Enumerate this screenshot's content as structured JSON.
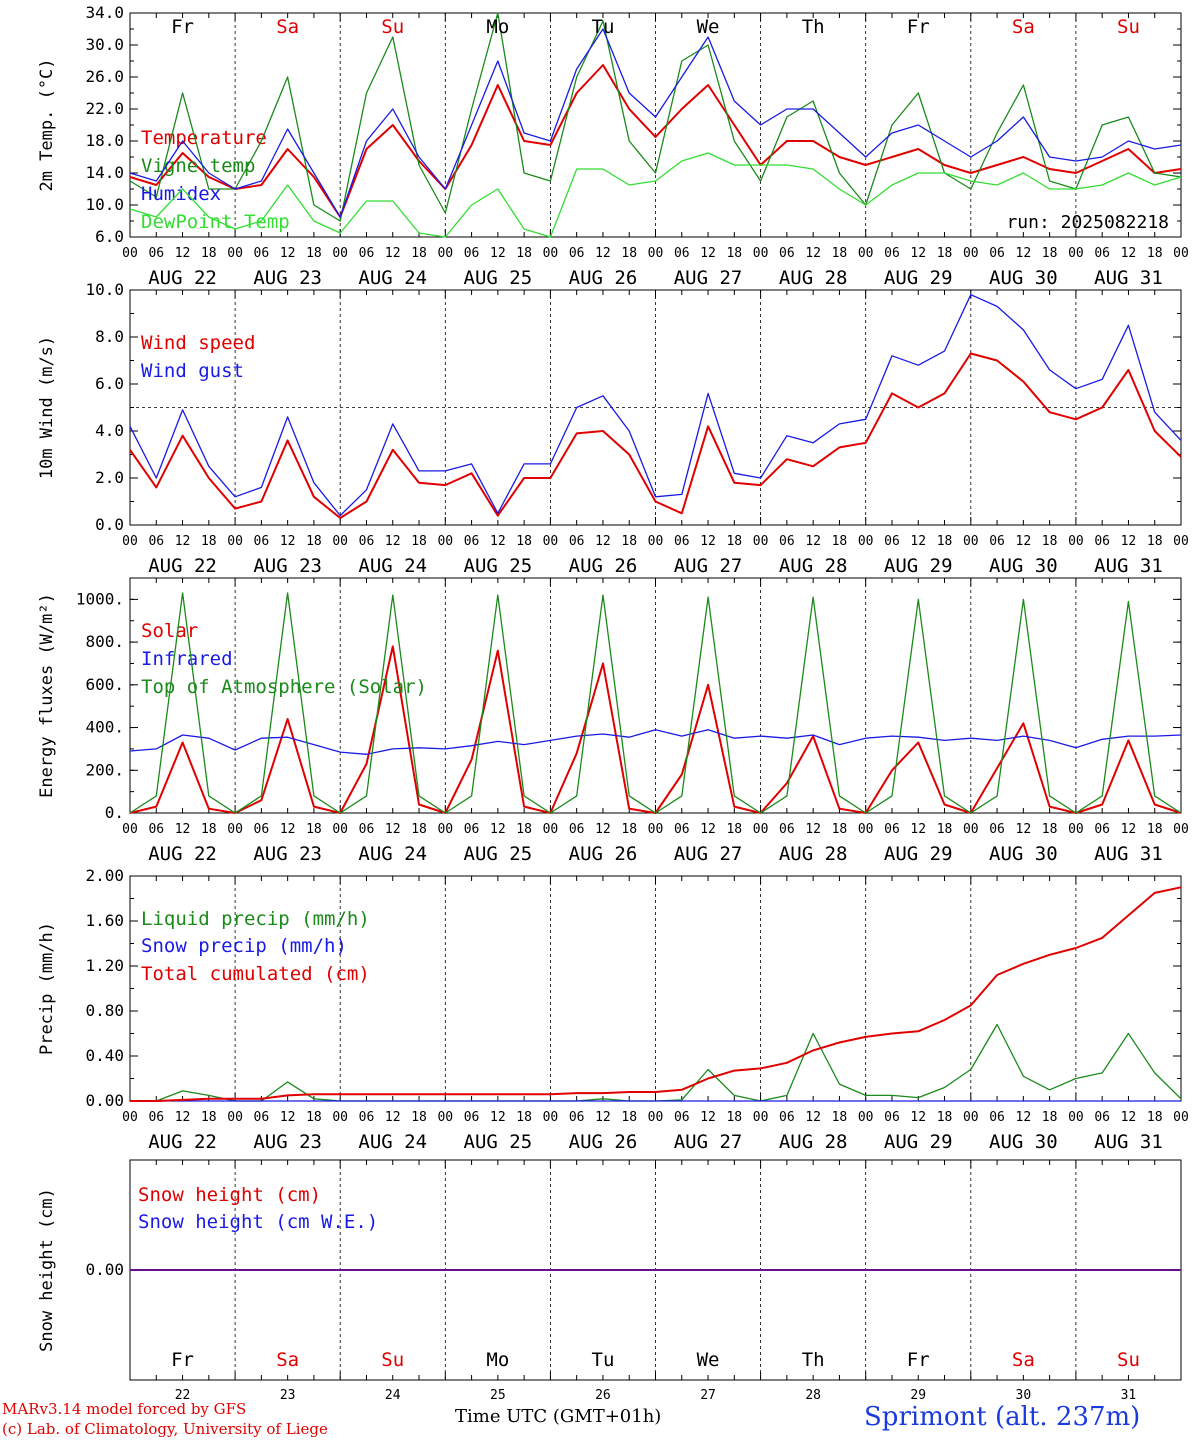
{
  "meta": {
    "run_label": "run: 2025082218",
    "x_axis_title": "Time UTC (GMT+01h)",
    "credit_line1": "MARv3.14 model forced by GFS",
    "credit_line2": "(c) Lab. of Climatology, University of Liege",
    "station": "Sprimont (alt. 237m)"
  },
  "days": {
    "abbrev": [
      "Fr",
      "Sa",
      "Su",
      "Mo",
      "Tu",
      "We",
      "Th",
      "Fr",
      "Sa",
      "Su"
    ],
    "weekend": [
      false,
      true,
      true,
      false,
      false,
      false,
      false,
      false,
      true,
      true
    ],
    "dates": [
      "AUG 22",
      "AUG 23",
      "AUG 24",
      "AUG 25",
      "AUG 26",
      "AUG 27",
      "AUG 28",
      "AUG 29",
      "AUG 30",
      "AUG 31"
    ],
    "numbers": [
      "22",
      "23",
      "24",
      "25",
      "26",
      "27",
      "28",
      "29",
      "30",
      "31"
    ],
    "hour_ticks": [
      "00",
      "06",
      "12",
      "18"
    ],
    "final_tick": "00"
  },
  "colors": {
    "red": "#e00000",
    "blue": "#1a1ae6",
    "green": "#1a8a1a",
    "lightgreen": "#33dd33"
  },
  "chart_data": [
    {
      "type": "line",
      "ylabel": "2m Temp. (°C)",
      "ylim": [
        6,
        34
      ],
      "yticks": [
        "34.0",
        "30.0",
        "26.0",
        "22.0",
        "18.0",
        "14.0",
        "10.0",
        "6.0"
      ],
      "x_hours_from_aug22_00": [
        0,
        6,
        12,
        18,
        24,
        30,
        36,
        42,
        48,
        54,
        60,
        66,
        72,
        78,
        84,
        90,
        96,
        102,
        108,
        114,
        120,
        126,
        132,
        138,
        144,
        150,
        156,
        162,
        168,
        174,
        180,
        186,
        192,
        198,
        204,
        210,
        216,
        222,
        228,
        234,
        240
      ],
      "series": [
        {
          "name": "Temperature",
          "color": "red",
          "values": [
            13.5,
            12.5,
            16.5,
            13.5,
            12,
            12.5,
            17,
            13.5,
            8.5,
            17,
            20,
            15.5,
            12,
            17.5,
            25,
            18,
            17.5,
            24,
            27.5,
            22,
            18.5,
            22,
            25,
            20,
            15,
            18,
            18,
            16,
            15,
            16,
            17,
            15,
            14,
            15,
            16,
            14.5,
            14,
            15.5,
            17,
            14,
            14.5
          ]
        },
        {
          "name": "Vigne temp",
          "color": "green",
          "values": [
            13,
            11,
            24,
            12,
            12,
            18,
            26,
            10,
            8,
            24,
            31,
            15,
            9,
            22,
            34,
            14,
            13,
            26,
            33,
            18,
            14,
            28,
            30,
            18,
            13,
            21,
            23,
            14,
            10,
            20,
            24,
            14,
            12,
            19,
            25,
            13,
            12,
            20,
            21,
            14,
            13.5
          ]
        },
        {
          "name": "Humidex",
          "color": "blue",
          "values": [
            14,
            13,
            18,
            14,
            12,
            13,
            19.5,
            14,
            8.5,
            18,
            22,
            16,
            12,
            20,
            28,
            19,
            18,
            27,
            32,
            24,
            21,
            26,
            31,
            23,
            20,
            22,
            22,
            19,
            16,
            19,
            20,
            18,
            16,
            18,
            21,
            16,
            15.5,
            16,
            18,
            17,
            17.5
          ]
        },
        {
          "name": "DewPoint Temp",
          "color": "lightgreen",
          "values": [
            9.5,
            8.5,
            12,
            8.5,
            7,
            8,
            12.5,
            8,
            6.5,
            10.5,
            10.5,
            6.5,
            6,
            10,
            12,
            7,
            6,
            14.5,
            14.5,
            12.5,
            13,
            15.5,
            16.5,
            15,
            15,
            15,
            14.5,
            12,
            10,
            12.5,
            14,
            14,
            13,
            12.5,
            14,
            12,
            12,
            12.5,
            14,
            12.5,
            13.5
          ]
        }
      ]
    },
    {
      "type": "line",
      "ylabel": "10m Wind (m/s)",
      "ylim": [
        0,
        10
      ],
      "yticks": [
        "10.0",
        "8.0",
        "6.0",
        "4.0",
        "2.0",
        "0.0"
      ],
      "reference_line": 5,
      "x_hours_from_aug22_00": [
        0,
        6,
        12,
        18,
        24,
        30,
        36,
        42,
        48,
        54,
        60,
        66,
        72,
        78,
        84,
        90,
        96,
        102,
        108,
        114,
        120,
        126,
        132,
        138,
        144,
        150,
        156,
        162,
        168,
        174,
        180,
        186,
        192,
        198,
        204,
        210,
        216,
        222,
        228,
        234,
        240
      ],
      "series": [
        {
          "name": "Wind speed",
          "color": "red",
          "values": [
            3.2,
            1.6,
            3.8,
            2.0,
            0.7,
            1.0,
            3.6,
            1.2,
            0.3,
            1.0,
            3.2,
            1.8,
            1.7,
            2.2,
            0.4,
            2.0,
            2.0,
            3.9,
            4.0,
            3.0,
            1.0,
            0.5,
            4.2,
            1.8,
            1.7,
            2.8,
            2.5,
            3.3,
            3.5,
            5.6,
            5.0,
            5.6,
            7.3,
            7.0,
            6.1,
            4.8,
            4.5,
            5.0,
            6.6,
            4.0,
            2.9
          ]
        },
        {
          "name": "Wind gust",
          "color": "blue",
          "values": [
            4.2,
            2.0,
            4.9,
            2.5,
            1.2,
            1.6,
            4.6,
            1.8,
            0.4,
            1.5,
            4.3,
            2.3,
            2.3,
            2.6,
            0.5,
            2.6,
            2.6,
            5.0,
            5.5,
            4.0,
            1.2,
            1.3,
            5.6,
            2.2,
            2.0,
            3.8,
            3.5,
            4.3,
            4.5,
            7.2,
            6.8,
            7.4,
            9.8,
            9.3,
            8.3,
            6.6,
            5.8,
            6.2,
            8.5,
            4.8,
            3.6
          ]
        }
      ]
    },
    {
      "type": "line",
      "ylabel": "Energy fluxes (W/m²)",
      "ylim": [
        0,
        1100
      ],
      "yticks": [
        "1000.",
        "800.",
        "600.",
        "400.",
        "200.",
        "0."
      ],
      "x_hours_from_aug22_00": [
        0,
        6,
        12,
        18,
        24,
        30,
        36,
        42,
        48,
        54,
        60,
        66,
        72,
        78,
        84,
        90,
        96,
        102,
        108,
        114,
        120,
        126,
        132,
        138,
        144,
        150,
        156,
        162,
        168,
        174,
        180,
        186,
        192,
        198,
        204,
        210,
        216,
        222,
        228,
        234,
        240
      ],
      "series": [
        {
          "name": "Solar",
          "color": "red",
          "values": [
            0,
            30,
            330,
            20,
            0,
            60,
            440,
            30,
            0,
            230,
            780,
            40,
            0,
            250,
            760,
            30,
            0,
            280,
            700,
            20,
            0,
            180,
            600,
            30,
            0,
            140,
            360,
            20,
            0,
            200,
            330,
            40,
            0,
            210,
            420,
            30,
            0,
            40,
            340,
            40,
            0
          ]
        },
        {
          "name": "Infrared",
          "color": "blue",
          "values": [
            290,
            300,
            365,
            350,
            295,
            350,
            355,
            320,
            285,
            275,
            300,
            305,
            300,
            315,
            335,
            320,
            340,
            360,
            370,
            355,
            390,
            360,
            390,
            350,
            360,
            350,
            365,
            320,
            350,
            360,
            355,
            340,
            350,
            340,
            360,
            340,
            305,
            345,
            360,
            360,
            365
          ]
        },
        {
          "name": "Top of Atmosphere (Solar)",
          "color": "green",
          "values": [
            0,
            80,
            1030,
            80,
            0,
            80,
            1030,
            80,
            0,
            80,
            1020,
            80,
            0,
            80,
            1020,
            80,
            0,
            80,
            1020,
            80,
            0,
            80,
            1010,
            80,
            0,
            80,
            1010,
            80,
            0,
            80,
            1000,
            80,
            0,
            80,
            1000,
            80,
            0,
            80,
            990,
            80,
            0
          ]
        }
      ]
    },
    {
      "type": "line",
      "ylabel": "Precip (mm/h)",
      "ylim": [
        0,
        2
      ],
      "yticks": [
        "2.00",
        "1.60",
        "1.20",
        "0.80",
        "0.40",
        "0.00"
      ],
      "x_hours_from_aug22_00": [
        0,
        6,
        12,
        18,
        24,
        30,
        36,
        42,
        48,
        54,
        60,
        66,
        72,
        78,
        84,
        90,
        96,
        102,
        108,
        114,
        120,
        126,
        132,
        138,
        144,
        150,
        156,
        162,
        168,
        174,
        180,
        186,
        192,
        198,
        204,
        210,
        216,
        222,
        228,
        234,
        240
      ],
      "series": [
        {
          "name": "Liquid precip (mm/h)",
          "color": "green",
          "values": [
            0,
            0,
            0.09,
            0.05,
            0,
            0,
            0.17,
            0.02,
            0,
            0,
            0,
            0,
            0,
            0,
            0,
            0,
            0,
            0,
            0.02,
            0,
            0,
            0.01,
            0.28,
            0.05,
            0,
            0.05,
            0.6,
            0.15,
            0.05,
            0.05,
            0.03,
            0.12,
            0.28,
            0.68,
            0.22,
            0.1,
            0.2,
            0.25,
            0.6,
            0.25,
            0.02
          ]
        },
        {
          "name": "Snow precip (mm/h)",
          "color": "blue",
          "values": [
            0,
            0,
            0,
            0,
            0,
            0,
            0,
            0,
            0,
            0,
            0,
            0,
            0,
            0,
            0,
            0,
            0,
            0,
            0,
            0,
            0,
            0,
            0,
            0,
            0,
            0,
            0,
            0,
            0,
            0,
            0,
            0,
            0,
            0,
            0,
            0,
            0,
            0,
            0,
            0,
            0
          ]
        },
        {
          "name": "Total cumulated (cm)",
          "color": "red",
          "values": [
            0,
            0,
            0.01,
            0.02,
            0.02,
            0.02,
            0.05,
            0.06,
            0.06,
            0.06,
            0.06,
            0.06,
            0.06,
            0.06,
            0.06,
            0.06,
            0.06,
            0.07,
            0.07,
            0.08,
            0.08,
            0.1,
            0.2,
            0.27,
            0.29,
            0.34,
            0.45,
            0.52,
            0.57,
            0.6,
            0.62,
            0.72,
            0.85,
            1.12,
            1.22,
            1.3,
            1.36,
            1.45,
            1.65,
            1.85,
            1.9
          ]
        }
      ]
    },
    {
      "type": "line",
      "ylabel": "Snow height (cm)",
      "ylim": [
        -1,
        1
      ],
      "yticks": [
        "0.00"
      ],
      "x_hours_from_aug22_00": [
        0,
        240
      ],
      "series": [
        {
          "name": "Snow height (cm)",
          "color": "red",
          "values": [
            0,
            0
          ]
        },
        {
          "name": "Snow height (cm W.E.)",
          "color": "blue",
          "values": [
            0,
            0
          ]
        }
      ]
    }
  ]
}
